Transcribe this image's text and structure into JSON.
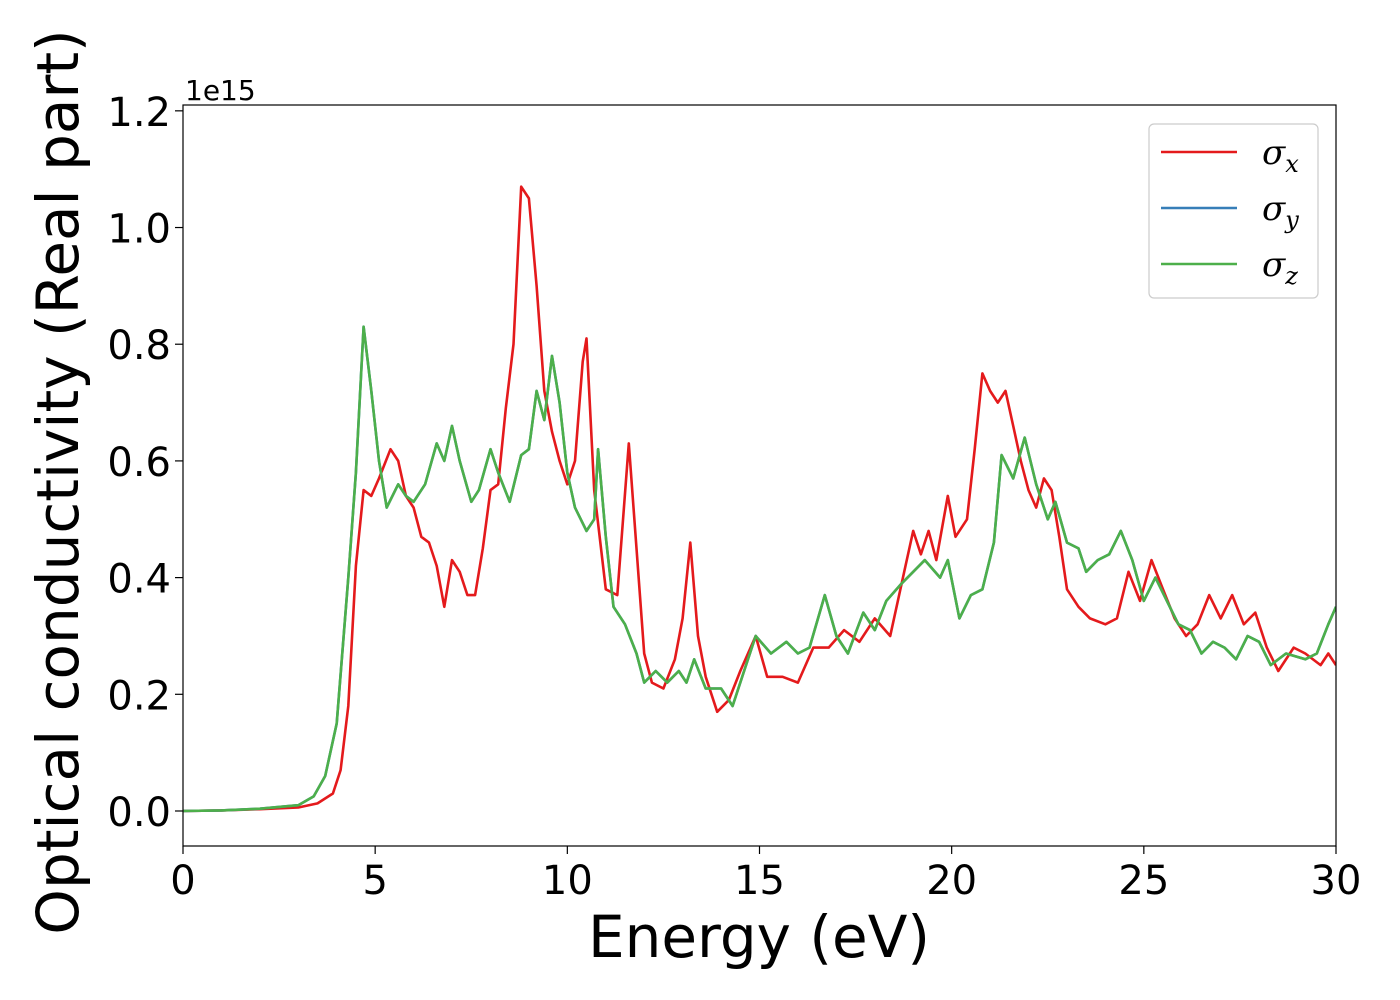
{
  "chart_data": {
    "type": "line",
    "title": "",
    "xlabel": "Energy (eV)",
    "ylabel": "Optical conductivity (Real part)",
    "y_offset_text": "1e15",
    "y_multiplier": 1000000000000000.0,
    "xlim": [
      0,
      30
    ],
    "ylim": [
      -0.06,
      1.21
    ],
    "xticks": [
      0,
      5,
      10,
      15,
      20,
      25,
      30
    ],
    "yticks": [
      0.0,
      0.2,
      0.4,
      0.6,
      0.8,
      1.0,
      1.2
    ],
    "ytick_labels": [
      "0.0",
      "0.2",
      "0.4",
      "0.6",
      "0.8",
      "1.0",
      "1.2"
    ],
    "grid": false,
    "legend_position": "top-right",
    "series": [
      {
        "name": "σx",
        "symbol": "σ",
        "subscript": "x",
        "color": "#e41a1c",
        "points": [
          [
            0,
            0
          ],
          [
            1,
            0.001
          ],
          [
            2,
            0.003
          ],
          [
            3,
            0.006
          ],
          [
            3.5,
            0.013
          ],
          [
            3.9,
            0.03
          ],
          [
            4.1,
            0.07
          ],
          [
            4.3,
            0.18
          ],
          [
            4.5,
            0.42
          ],
          [
            4.7,
            0.55
          ],
          [
            4.9,
            0.54
          ],
          [
            5.1,
            0.57
          ],
          [
            5.4,
            0.62
          ],
          [
            5.6,
            0.6
          ],
          [
            5.8,
            0.54
          ],
          [
            6,
            0.52
          ],
          [
            6.2,
            0.47
          ],
          [
            6.4,
            0.46
          ],
          [
            6.6,
            0.42
          ],
          [
            6.8,
            0.35
          ],
          [
            7,
            0.43
          ],
          [
            7.2,
            0.41
          ],
          [
            7.4,
            0.37
          ],
          [
            7.6,
            0.37
          ],
          [
            7.8,
            0.45
          ],
          [
            8,
            0.55
          ],
          [
            8.2,
            0.56
          ],
          [
            8.4,
            0.69
          ],
          [
            8.6,
            0.8
          ],
          [
            8.8,
            1.07
          ],
          [
            9,
            1.05
          ],
          [
            9.2,
            0.9
          ],
          [
            9.4,
            0.72
          ],
          [
            9.6,
            0.65
          ],
          [
            9.8,
            0.6
          ],
          [
            10,
            0.56
          ],
          [
            10.2,
            0.6
          ],
          [
            10.4,
            0.77
          ],
          [
            10.5,
            0.81
          ],
          [
            10.7,
            0.55
          ],
          [
            11,
            0.38
          ],
          [
            11.3,
            0.37
          ],
          [
            11.6,
            0.63
          ],
          [
            11.8,
            0.45
          ],
          [
            12,
            0.27
          ],
          [
            12.2,
            0.22
          ],
          [
            12.5,
            0.21
          ],
          [
            12.8,
            0.26
          ],
          [
            13,
            0.33
          ],
          [
            13.2,
            0.46
          ],
          [
            13.4,
            0.3
          ],
          [
            13.6,
            0.23
          ],
          [
            13.9,
            0.17
          ],
          [
            14.2,
            0.19
          ],
          [
            14.5,
            0.24
          ],
          [
            14.9,
            0.3
          ],
          [
            15.2,
            0.23
          ],
          [
            15.6,
            0.23
          ],
          [
            16,
            0.22
          ],
          [
            16.4,
            0.28
          ],
          [
            16.8,
            0.28
          ],
          [
            17.2,
            0.31
          ],
          [
            17.6,
            0.29
          ],
          [
            18,
            0.33
          ],
          [
            18.4,
            0.3
          ],
          [
            18.8,
            0.42
          ],
          [
            19,
            0.48
          ],
          [
            19.2,
            0.44
          ],
          [
            19.4,
            0.48
          ],
          [
            19.6,
            0.43
          ],
          [
            19.9,
            0.54
          ],
          [
            20.1,
            0.47
          ],
          [
            20.4,
            0.5
          ],
          [
            20.6,
            0.62
          ],
          [
            20.8,
            0.75
          ],
          [
            21,
            0.72
          ],
          [
            21.2,
            0.7
          ],
          [
            21.4,
            0.72
          ],
          [
            21.6,
            0.66
          ],
          [
            21.8,
            0.6
          ],
          [
            22,
            0.55
          ],
          [
            22.2,
            0.52
          ],
          [
            22.4,
            0.57
          ],
          [
            22.6,
            0.55
          ],
          [
            22.8,
            0.47
          ],
          [
            23,
            0.38
          ],
          [
            23.3,
            0.35
          ],
          [
            23.6,
            0.33
          ],
          [
            24,
            0.32
          ],
          [
            24.3,
            0.33
          ],
          [
            24.6,
            0.41
          ],
          [
            24.9,
            0.36
          ],
          [
            25.2,
            0.43
          ],
          [
            25.5,
            0.38
          ],
          [
            25.8,
            0.33
          ],
          [
            26.1,
            0.3
          ],
          [
            26.4,
            0.32
          ],
          [
            26.7,
            0.37
          ],
          [
            27,
            0.33
          ],
          [
            27.3,
            0.37
          ],
          [
            27.6,
            0.32
          ],
          [
            27.9,
            0.34
          ],
          [
            28.2,
            0.28
          ],
          [
            28.5,
            0.24
          ],
          [
            28.9,
            0.28
          ],
          [
            29.2,
            0.27
          ],
          [
            29.6,
            0.25
          ],
          [
            29.8,
            0.27
          ],
          [
            30,
            0.25
          ]
        ]
      },
      {
        "name": "σy",
        "symbol": "σ",
        "subscript": "y",
        "color": "#377eb8"
      },
      {
        "name": "σz",
        "symbol": "σ",
        "subscript": "z",
        "color": "#4daf4a",
        "points": [
          [
            0,
            0
          ],
          [
            1,
            0.001
          ],
          [
            2,
            0.004
          ],
          [
            3,
            0.01
          ],
          [
            3.4,
            0.025
          ],
          [
            3.7,
            0.06
          ],
          [
            4,
            0.15
          ],
          [
            4.3,
            0.4
          ],
          [
            4.5,
            0.58
          ],
          [
            4.7,
            0.83
          ],
          [
            4.9,
            0.72
          ],
          [
            5.1,
            0.6
          ],
          [
            5.3,
            0.52
          ],
          [
            5.6,
            0.56
          ],
          [
            5.8,
            0.54
          ],
          [
            6,
            0.53
          ],
          [
            6.3,
            0.56
          ],
          [
            6.6,
            0.63
          ],
          [
            6.8,
            0.6
          ],
          [
            7,
            0.66
          ],
          [
            7.2,
            0.6
          ],
          [
            7.5,
            0.53
          ],
          [
            7.7,
            0.55
          ],
          [
            8,
            0.62
          ],
          [
            8.2,
            0.58
          ],
          [
            8.5,
            0.53
          ],
          [
            8.8,
            0.61
          ],
          [
            9,
            0.62
          ],
          [
            9.2,
            0.72
          ],
          [
            9.4,
            0.67
          ],
          [
            9.6,
            0.78
          ],
          [
            9.8,
            0.7
          ],
          [
            10,
            0.58
          ],
          [
            10.2,
            0.52
          ],
          [
            10.5,
            0.48
          ],
          [
            10.7,
            0.5
          ],
          [
            10.8,
            0.62
          ],
          [
            11,
            0.47
          ],
          [
            11.2,
            0.35
          ],
          [
            11.5,
            0.32
          ],
          [
            11.8,
            0.27
          ],
          [
            12,
            0.22
          ],
          [
            12.3,
            0.24
          ],
          [
            12.6,
            0.22
          ],
          [
            12.9,
            0.24
          ],
          [
            13.1,
            0.22
          ],
          [
            13.3,
            0.26
          ],
          [
            13.6,
            0.21
          ],
          [
            14,
            0.21
          ],
          [
            14.3,
            0.18
          ],
          [
            14.6,
            0.24
          ],
          [
            14.9,
            0.3
          ],
          [
            15.3,
            0.27
          ],
          [
            15.7,
            0.29
          ],
          [
            16,
            0.27
          ],
          [
            16.3,
            0.28
          ],
          [
            16.7,
            0.37
          ],
          [
            17,
            0.3
          ],
          [
            17.3,
            0.27
          ],
          [
            17.7,
            0.34
          ],
          [
            18,
            0.31
          ],
          [
            18.3,
            0.36
          ],
          [
            18.7,
            0.39
          ],
          [
            19,
            0.41
          ],
          [
            19.3,
            0.43
          ],
          [
            19.7,
            0.4
          ],
          [
            19.9,
            0.43
          ],
          [
            20.2,
            0.33
          ],
          [
            20.5,
            0.37
          ],
          [
            20.8,
            0.38
          ],
          [
            21.1,
            0.46
          ],
          [
            21.3,
            0.61
          ],
          [
            21.6,
            0.57
          ],
          [
            21.9,
            0.64
          ],
          [
            22.2,
            0.56
          ],
          [
            22.5,
            0.5
          ],
          [
            22.7,
            0.53
          ],
          [
            23,
            0.46
          ],
          [
            23.3,
            0.45
          ],
          [
            23.5,
            0.41
          ],
          [
            23.8,
            0.43
          ],
          [
            24.1,
            0.44
          ],
          [
            24.4,
            0.48
          ],
          [
            24.7,
            0.43
          ],
          [
            25,
            0.36
          ],
          [
            25.3,
            0.4
          ],
          [
            25.6,
            0.36
          ],
          [
            25.9,
            0.32
          ],
          [
            26.2,
            0.31
          ],
          [
            26.5,
            0.27
          ],
          [
            26.8,
            0.29
          ],
          [
            27.1,
            0.28
          ],
          [
            27.4,
            0.26
          ],
          [
            27.7,
            0.3
          ],
          [
            28,
            0.29
          ],
          [
            28.3,
            0.25
          ],
          [
            28.7,
            0.27
          ],
          [
            29.2,
            0.26
          ],
          [
            29.5,
            0.27
          ],
          [
            29.8,
            0.32
          ],
          [
            30,
            0.35
          ]
        ]
      }
    ]
  }
}
